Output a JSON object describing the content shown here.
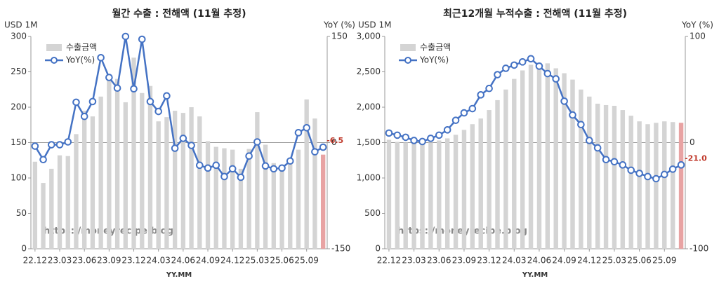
{
  "chart_data": [
    {
      "type": "bar_line",
      "title": "월간 수출 : 전해액 (11월 추정)",
      "y_label": "USD 1M",
      "y2_label": "YoY (%)",
      "x_label": "YY.MM",
      "watermark": "https://moneyrecipe.blog",
      "categories": [
        "22.12",
        null,
        null,
        "23.03",
        null,
        null,
        "23.06",
        null,
        null,
        "23.09",
        null,
        null,
        "23.12",
        null,
        null,
        "24.03",
        null,
        null,
        "24.06",
        null,
        null,
        "24.09",
        null,
        null,
        "24.12",
        null,
        null,
        "25.03",
        null,
        null,
        "25.06",
        null,
        null,
        "25.09",
        null,
        null
      ],
      "ylim": [
        0,
        300
      ],
      "yticks": [
        0,
        50,
        100,
        150,
        200,
        250,
        300
      ],
      "y2lim": [
        -150,
        150
      ],
      "y2ticks": [
        -150,
        0,
        150
      ],
      "legend": "upper left",
      "series": [
        {
          "name": "수출금액",
          "type": "bar",
          "color": "#d4d4d4",
          "last_color": "#e8a3a3",
          "values": [
            123,
            93,
            113,
            132,
            131,
            162,
            195,
            187,
            215,
            245,
            240,
            207,
            270,
            220,
            230,
            180,
            186,
            195,
            192,
            200,
            187,
            152,
            144,
            142,
            140,
            113,
            141,
            193,
            147,
            121,
            118,
            120,
            140,
            211,
            184,
            133
          ]
        },
        {
          "name": "YoY(%)",
          "type": "line",
          "axis": "y2",
          "color": "#4472c4",
          "values": [
            -5,
            -24,
            -3,
            -3,
            1,
            57,
            37,
            58,
            120,
            92,
            77,
            150,
            76,
            146,
            58,
            44,
            66,
            -8,
            6,
            -4,
            -32,
            -36,
            -32,
            -48,
            -37,
            -49,
            -19,
            1,
            -33,
            -37,
            -36,
            -26,
            14,
            21,
            -13,
            -6.5
          ],
          "value_labels": [
            null,
            null,
            null,
            null,
            null,
            null,
            null,
            null,
            null,
            null,
            null,
            null,
            null,
            null,
            null,
            null,
            null,
            null,
            null,
            null,
            null,
            null,
            null,
            null,
            null,
            null,
            null,
            null,
            null,
            null,
            null,
            null,
            null,
            null,
            null,
            "-6.5"
          ]
        }
      ]
    },
    {
      "type": "bar_line",
      "title": "최근12개월 누적수출 : 전해액 (11월 추정)",
      "y_label": "USD 1M",
      "y2_label": "YoY (%)",
      "x_label": "YY.MM",
      "watermark": "https://moneyrecipe.blog",
      "categories": [
        "22.12",
        null,
        null,
        "23.03",
        null,
        null,
        "23.06",
        null,
        null,
        "23.09",
        null,
        null,
        "23.12",
        null,
        null,
        "24.03",
        null,
        null,
        "24.06",
        null,
        null,
        "24.09",
        null,
        null,
        "24.12",
        null,
        null,
        "25.03",
        null,
        null,
        "25.06",
        null,
        null,
        "25.09",
        null,
        null
      ],
      "ylim": [
        0,
        3000
      ],
      "yticks": [
        0,
        {
          "value": 500,
          "label": "500"
        },
        {
          "value": 1000,
          "label": "1,000"
        },
        {
          "value": 1500,
          "label": "1,500"
        },
        {
          "value": 2000,
          "label": "2,000"
        },
        {
          "value": 2500,
          "label": "2,500"
        },
        {
          "value": 3000,
          "label": "3,000"
        }
      ],
      "y2lim": [
        -100,
        100
      ],
      "y2ticks": [
        -100,
        0,
        100
      ],
      "legend": "upper left",
      "series": [
        {
          "name": "수출금액",
          "type": "bar",
          "color": "#d4d4d4",
          "last_color": "#e8a3a3",
          "values": [
            1540,
            1510,
            1500,
            1490,
            1480,
            1500,
            1530,
            1560,
            1610,
            1680,
            1760,
            1840,
            1960,
            2100,
            2250,
            2400,
            2520,
            2600,
            2630,
            2620,
            2550,
            2480,
            2390,
            2250,
            2150,
            2050,
            2030,
            2020,
            1960,
            1880,
            1800,
            1760,
            1780,
            1800,
            1790,
            1780
          ]
        },
        {
          "name": "YoY(%)",
          "type": "line",
          "axis": "y2",
          "color": "#4472c4",
          "values": [
            9,
            7,
            5,
            2,
            1,
            4,
            7,
            12,
            21,
            28,
            32,
            45,
            51,
            64,
            70,
            73,
            76,
            79,
            72,
            65,
            60,
            39,
            26,
            17,
            2,
            -5,
            -16,
            -18,
            -21,
            -26,
            -29,
            -32,
            -34,
            -30,
            -25,
            -21
          ],
          "value_labels": [
            null,
            null,
            null,
            null,
            null,
            null,
            null,
            null,
            null,
            null,
            null,
            null,
            null,
            null,
            null,
            null,
            null,
            null,
            null,
            null,
            null,
            null,
            null,
            null,
            null,
            null,
            null,
            null,
            null,
            null,
            null,
            null,
            null,
            null,
            null,
            "-21.0"
          ]
        }
      ]
    }
  ]
}
